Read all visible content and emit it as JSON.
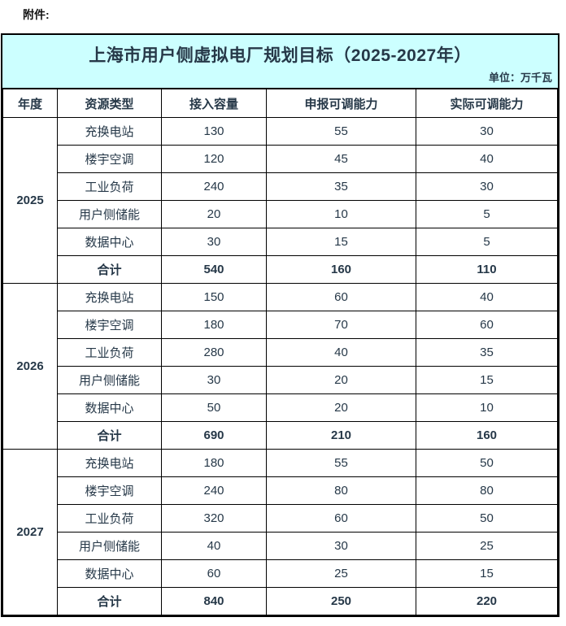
{
  "attachment_label": "附件:",
  "table": {
    "title": "上海市用户侧虚拟电厂规划目标（2025-2027年）",
    "unit_note": "单位：万千瓦",
    "columns": [
      "年度",
      "资源类型",
      "接入容量",
      "申报可调能力",
      "实际可调能力"
    ],
    "groups": [
      {
        "year": "2025",
        "rows": [
          {
            "type": "充换电站",
            "values": [
              130,
              55,
              30
            ]
          },
          {
            "type": "楼宇空调",
            "values": [
              120,
              45,
              40
            ]
          },
          {
            "type": "工业负荷",
            "values": [
              240,
              35,
              30
            ]
          },
          {
            "type": "用户侧储能",
            "values": [
              20,
              10,
              5
            ]
          },
          {
            "type": "数据中心",
            "values": [
              30,
              15,
              5
            ]
          }
        ],
        "total": {
          "label": "合计",
          "values": [
            540,
            160,
            110
          ]
        }
      },
      {
        "year": "2026",
        "rows": [
          {
            "type": "充换电站",
            "values": [
              150,
              60,
              40
            ]
          },
          {
            "type": "楼宇空调",
            "values": [
              180,
              70,
              60
            ]
          },
          {
            "type": "工业负荷",
            "values": [
              280,
              40,
              35
            ]
          },
          {
            "type": "用户侧储能",
            "values": [
              30,
              20,
              15
            ]
          },
          {
            "type": "数据中心",
            "values": [
              50,
              20,
              10
            ]
          }
        ],
        "total": {
          "label": "合计",
          "values": [
            690,
            210,
            160
          ]
        }
      },
      {
        "year": "2027",
        "rows": [
          {
            "type": "充换电站",
            "values": [
              180,
              55,
              50
            ]
          },
          {
            "type": "楼宇空调",
            "values": [
              240,
              80,
              80
            ]
          },
          {
            "type": "工业负荷",
            "values": [
              320,
              60,
              50
            ]
          },
          {
            "type": "用户侧储能",
            "values": [
              40,
              30,
              25
            ]
          },
          {
            "type": "数据中心",
            "values": [
              60,
              25,
              15
            ]
          }
        ],
        "total": {
          "label": "合计",
          "values": [
            840,
            250,
            220
          ]
        }
      }
    ]
  },
  "colors": {
    "title_bg": "#CCFFFF",
    "text": "#263848",
    "border": "#000000"
  }
}
